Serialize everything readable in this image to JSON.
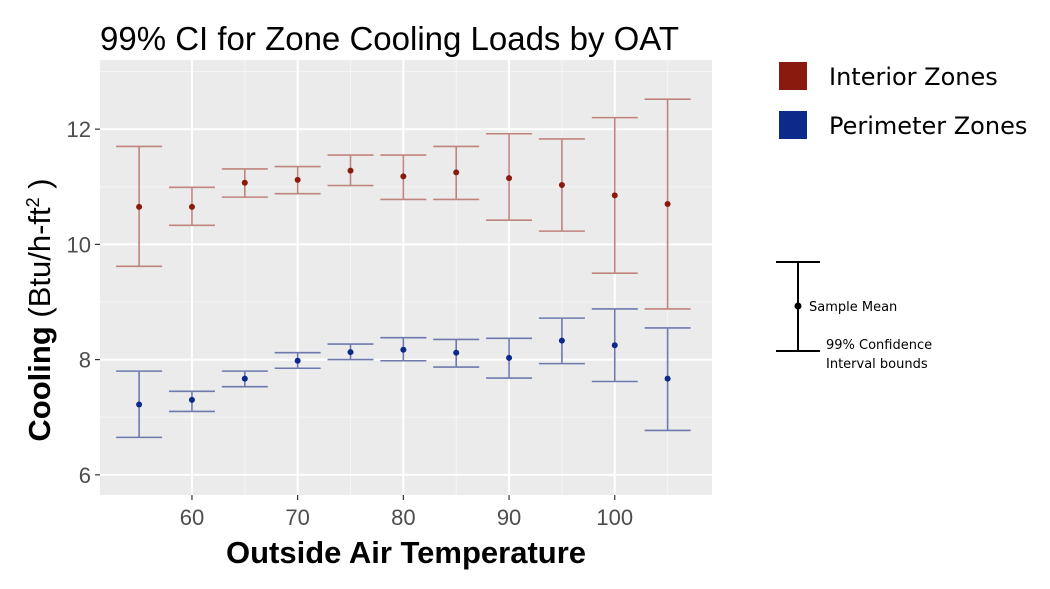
{
  "chart_data": {
    "type": "scatter",
    "title": "99% CI for Zone Cooling Loads by OAT",
    "xlabel": "Outside Air Temperature",
    "ylabel": "Cooling (Btu/h-ft²)",
    "ylabel_parts": {
      "main": "Cooling",
      "unit_open": " (Btu/h-ft",
      "unit_sup": "2",
      "unit_close": " )"
    },
    "xlim": [
      51.3,
      109.2
    ],
    "ylim": [
      5.65,
      13.2
    ],
    "x_ticks": [
      60,
      70,
      80,
      90,
      100
    ],
    "y_ticks": [
      6,
      8,
      10,
      12
    ],
    "grid": true,
    "legend_position": "top-right",
    "series": [
      {
        "name": "Interior Zones",
        "color": "#8b1a0e",
        "error_color": "#c0847e",
        "x": [
          55,
          60,
          65,
          70,
          75,
          80,
          85,
          90,
          95,
          100,
          105
        ],
        "mean": [
          10.65,
          10.65,
          11.07,
          11.12,
          11.28,
          11.18,
          11.25,
          11.15,
          11.03,
          10.85,
          10.7
        ],
        "lower": [
          9.62,
          10.33,
          10.82,
          10.88,
          11.02,
          10.78,
          10.78,
          10.42,
          10.23,
          9.5,
          8.88
        ],
        "upper": [
          11.7,
          10.99,
          11.31,
          11.35,
          11.55,
          11.55,
          11.7,
          11.92,
          11.83,
          12.2,
          12.52
        ]
      },
      {
        "name": "Perimeter Zones",
        "color": "#0b2a8a",
        "error_color": "#6e7aad",
        "x": [
          55,
          60,
          65,
          70,
          75,
          80,
          85,
          90,
          95,
          100,
          105
        ],
        "mean": [
          7.22,
          7.3,
          7.67,
          7.98,
          8.13,
          8.17,
          8.12,
          8.03,
          8.33,
          8.25,
          7.67
        ],
        "lower": [
          6.65,
          7.1,
          7.53,
          7.85,
          8.0,
          7.98,
          7.87,
          7.68,
          7.93,
          7.62,
          6.77
        ],
        "upper": [
          7.8,
          7.45,
          7.8,
          8.12,
          8.27,
          8.38,
          8.35,
          8.37,
          8.72,
          8.88,
          8.55
        ]
      }
    ],
    "key": {
      "mean_label": "Sample Mean",
      "bounds_label_line1": "99% Confidence",
      "bounds_label_line2": "Interval bounds"
    }
  }
}
